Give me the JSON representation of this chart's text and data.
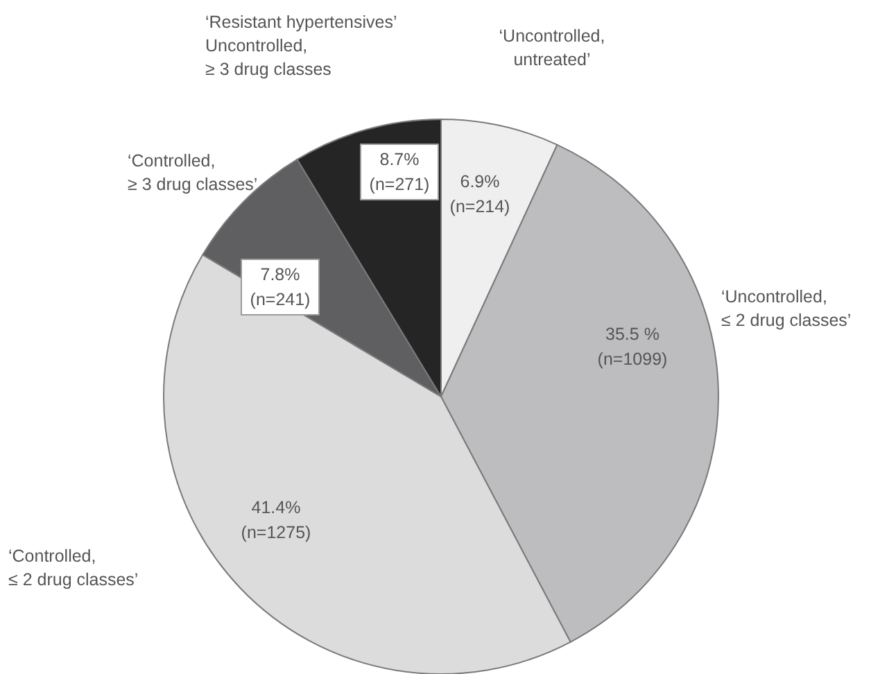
{
  "chart_data": {
    "type": "pie",
    "categories": [
      "‘Uncontrolled,\nuntreated’",
      "‘Uncontrolled,\n≤ 2 drug classes’",
      "‘Controlled,\n≤ 2 drug classes’",
      "‘Controlled,\n≥ 3 drug classes’",
      "‘Resistant hypertensives’\nUncontrolled,\n≥ 3 drug classes"
    ],
    "values": [
      6.9,
      35.5,
      41.4,
      7.8,
      8.7
    ],
    "colors": [
      "#efefef",
      "#bdbdbf",
      "#dcdcdd",
      "#5f5f61",
      "#262526"
    ],
    "value_labels": [
      "6.9%\n(n=214)",
      "35.5 %\n(n=1099)",
      "41.4%\n(n=1275)",
      "7.8%\n(n=241)",
      "8.7%\n(n=271)"
    ],
    "legend": false
  }
}
